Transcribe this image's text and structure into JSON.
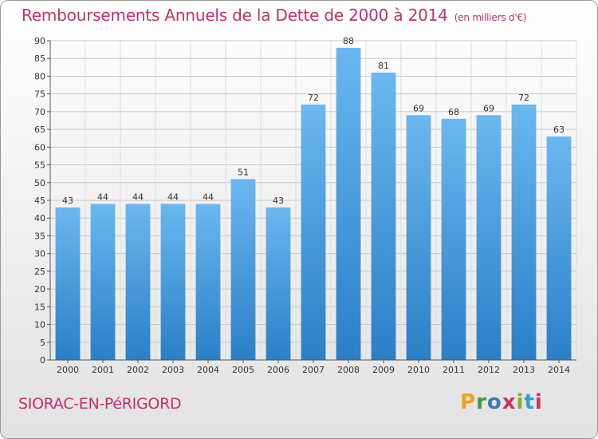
{
  "header": {
    "title": "Remboursements Annuels de la Dette de 2000 à 2014",
    "unit": "(en milliers d'€)"
  },
  "footer": {
    "commune": "SIORAC-EN-PéRIGORD",
    "logo_letters": [
      "P",
      "r",
      "o",
      "x",
      "i",
      "t",
      "i"
    ]
  },
  "colors": {
    "title": "#c0306e",
    "bar_light": "#6bb7ef",
    "bar_dark": "#2a7fc7"
  },
  "chart_data": {
    "type": "bar",
    "title": "Remboursements Annuels de la Dette de 2000 à 2014",
    "xlabel": "",
    "ylabel": "",
    "ylim": [
      0,
      90
    ],
    "ytick_step": 5,
    "grid": true,
    "categories": [
      "2000",
      "2001",
      "2002",
      "2003",
      "2004",
      "2005",
      "2006",
      "2007",
      "2008",
      "2009",
      "2010",
      "2011",
      "2012",
      "2013",
      "2014"
    ],
    "values": [
      43,
      44,
      44,
      44,
      44,
      51,
      43,
      72,
      88,
      81,
      69,
      68,
      69,
      72,
      63
    ]
  }
}
